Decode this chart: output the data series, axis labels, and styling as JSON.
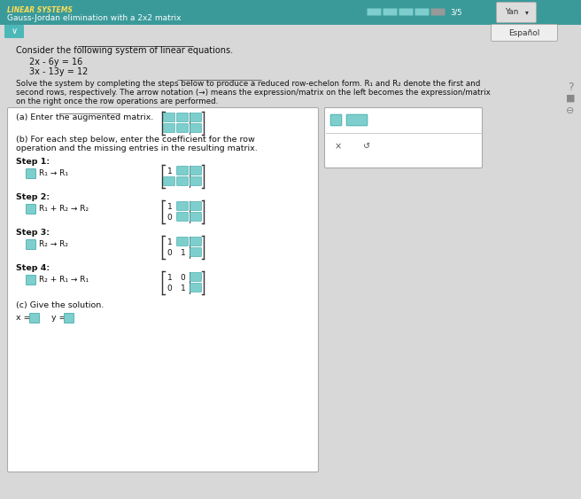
{
  "header_bg": "#3a9a9a",
  "header_text1": "LINEAR SYSTEMS",
  "header_text2": "Gauss-Jordan elimination with a 2x2 matrix",
  "progress_text": "3/5",
  "btn_text": "Yan",
  "espanol_text": "Español",
  "main_bg": "#d8d8d8",
  "content_bg": "#ffffff",
  "widget_bg": "#ffffff",
  "title_text": "Consider the following system of linear equations.",
  "eq1": "2x - 6y = 16",
  "eq2": "3x - 13y = 12",
  "solve_line1": "Solve the system by completing the steps below to produce a reduced row-echelon form. R₁ and R₂ denote the first and",
  "solve_line2": "second rows, respectively. The arrow notation (→) means the expression/matrix on the left becomes the expression/matrix",
  "solve_line3": "on the right once the row operations are performed.",
  "part_a_label": "(a) Enter the augmented matrix.",
  "part_b_line1": "(b) For each step below, enter the coefficient for the row",
  "part_b_line2": "operation and the missing entries in the resulting matrix.",
  "step1_label": "Step 1:",
  "step1_op": "R₁ → R₁",
  "step2_label": "Step 2:",
  "step2_op": "R₁ + R₂ → R₂",
  "step3_label": "Step 3:",
  "step3_op": "R₂ → R₂",
  "step4_label": "Step 4:",
  "step4_op": "R₂ + R₁ → R₁",
  "part_c_label": "(c) Give the solution.",
  "x_label": "x =",
  "y_label": "y =",
  "input_color": "#7ecece",
  "input_border": "#4aadad",
  "progress_color": "#7ecece",
  "frame_color": "#aaaaaa",
  "text_color": "#111111",
  "header_subtext_color": "#ffdd55",
  "side_q": "?",
  "side_icon1": "■",
  "side_icon2": "⊖"
}
